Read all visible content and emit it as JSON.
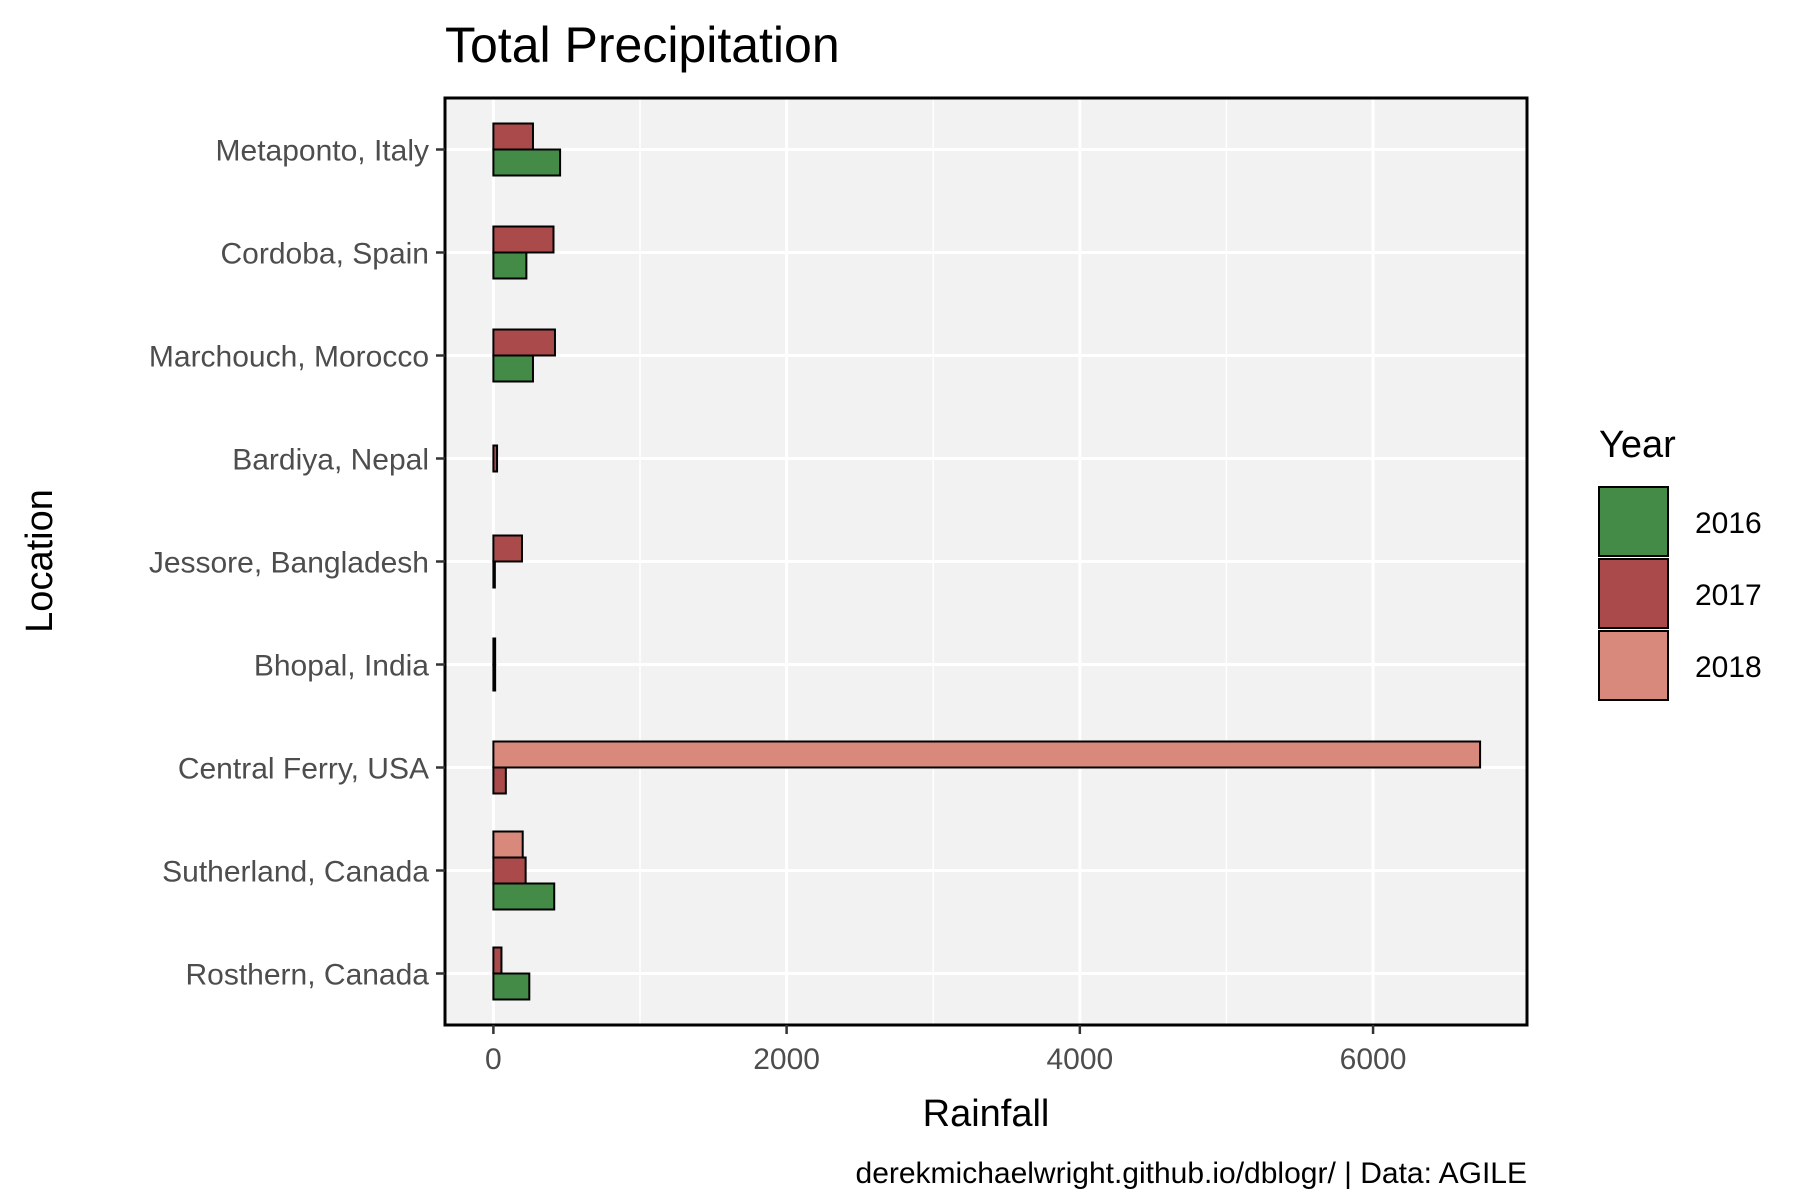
{
  "chart_data": {
    "type": "bar",
    "orientation": "horizontal",
    "title": "Total Precipitation",
    "xlabel": "Rainfall",
    "ylabel": "Location",
    "caption": "derekmichaelwright.github.io/dblogr/ | Data: AGILE",
    "categories": [
      "Metaponto, Italy",
      "Cordoba, Spain",
      "Marchouch, Morocco",
      "Bardiya, Nepal",
      "Jessore, Bangladesh",
      "Bhopal, India",
      "Central Ferry, USA",
      "Sutherland, Canada",
      "Rosthern, Canada"
    ],
    "series": [
      {
        "name": "2016",
        "color": "#448b47",
        "values": [
          455,
          225,
          270,
          null,
          10,
          12,
          null,
          415,
          245
        ]
      },
      {
        "name": "2017",
        "color": "#aa4a4a",
        "values": [
          270,
          410,
          420,
          25,
          195,
          12,
          85,
          220,
          55
        ]
      },
      {
        "name": "2018",
        "color": "#d9897c",
        "values": [
          null,
          null,
          null,
          null,
          null,
          null,
          6730,
          200,
          null
        ]
      }
    ],
    "xlim": [
      -330,
      7050
    ],
    "xticks": [
      0,
      2000,
      4000,
      6000
    ],
    "x_minor_ticks": [
      1000,
      3000,
      5000
    ],
    "grid": true,
    "legend": {
      "title": "Year",
      "position": "right"
    }
  }
}
